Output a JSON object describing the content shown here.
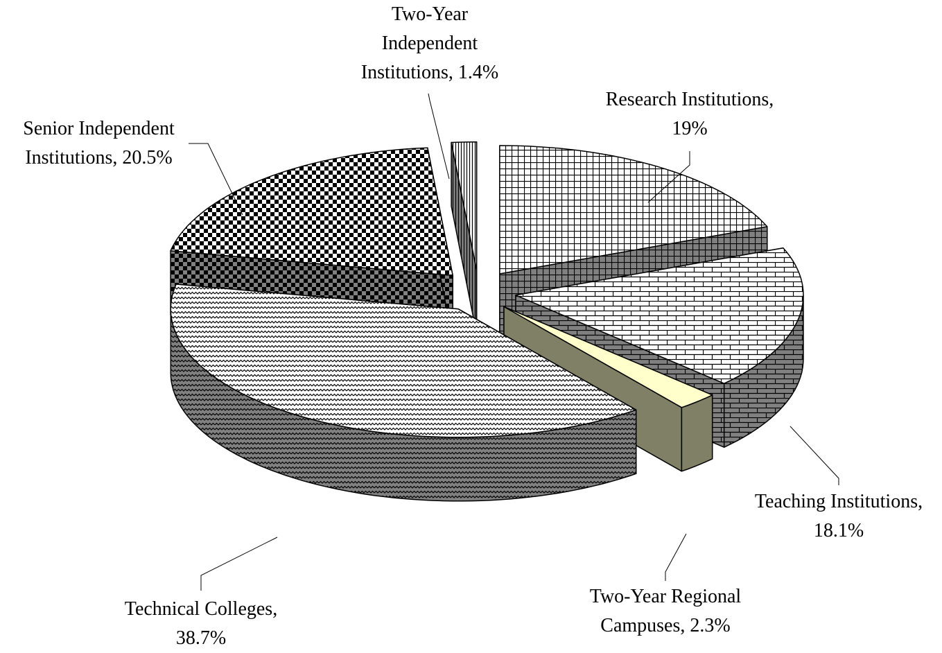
{
  "chart_data": {
    "type": "pie3d",
    "values": [
      19,
      18.1,
      2.3,
      38.7,
      20.5,
      1.4
    ],
    "value_labels": [
      "Research Institutions, 19%",
      "Teaching Institutions, 18.1%",
      "Two-Year Regional Campuses, 2.3%",
      "Technical Colleges, 38.7%",
      "Senior Independent Institutions, 20.5%",
      "Two-Year Independent Institutions, 1.4%"
    ],
    "colors": [
      "#ffffff",
      "#ffffff",
      "#ffffcc",
      "#ffffff",
      "#ffffff",
      "#ffffff"
    ],
    "patterns": [
      "grid",
      "brick",
      "solid",
      "wave",
      "checker",
      "vlines"
    ]
  }
}
